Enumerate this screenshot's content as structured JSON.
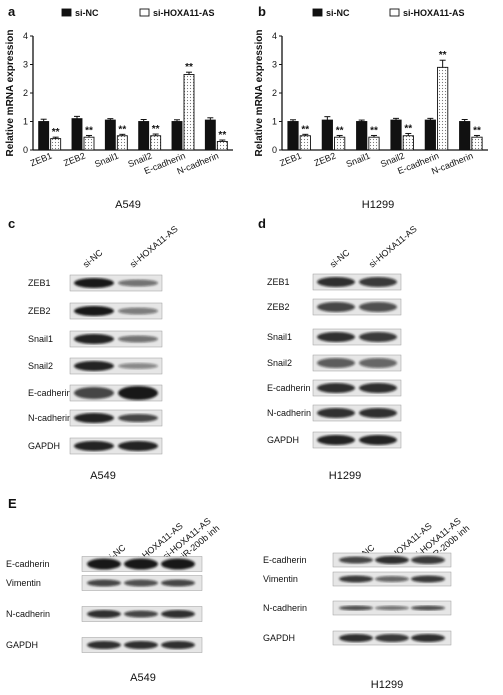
{
  "panels": {
    "a": {
      "letter": "a",
      "cell_line": "A549"
    },
    "b": {
      "letter": "b",
      "cell_line": "H1299"
    },
    "c": {
      "letter": "c",
      "cell_line": "A549",
      "columns": [
        "si-NC",
        "si-HOXA11-AS"
      ],
      "rows": [
        "ZEB1",
        "ZEB2",
        "Snail1",
        "Snail2",
        "E-cadherin",
        "N-cadherin",
        "GAPDH"
      ]
    },
    "d": {
      "letter": "d",
      "cell_line": "H1299",
      "columns": [
        "si-NC",
        "si-HOXA11-AS"
      ],
      "rows": [
        "ZEB1",
        "ZEB2",
        "Snail1",
        "Snail2",
        "E-cadherin",
        "N-cadherin",
        "GAPDH"
      ]
    },
    "e": {
      "letter": "E",
      "left": {
        "cell_line": "A549",
        "columns": [
          "si-NC",
          "si-HOXA11-AS",
          "si-HOXA11-AS",
          "+miR-200b inh"
        ],
        "rows": [
          "E-cadherin",
          "Vimentin",
          "N-cadherin",
          "GAPDH"
        ]
      },
      "right": {
        "cell_line": "H1299",
        "columns": [
          "si-NC",
          "si-HOXA11-AS",
          "si-HOXA11-AS",
          "+miR-200b inh"
        ],
        "rows": [
          "E-cadherin",
          "Vimentin",
          "N-cadherin",
          "GAPDH"
        ]
      }
    }
  },
  "chart_data": [
    {
      "type": "bar",
      "panel": "a",
      "categories": [
        "ZEB1",
        "ZEB2",
        "Snail1",
        "Snail2",
        "E-cadherin",
        "N-cadherin"
      ],
      "series": [
        {
          "name": "si-NC",
          "values": [
            1.0,
            1.1,
            1.05,
            1.0,
            1.0,
            1.05
          ],
          "errors": [
            0.08,
            0.08,
            0.05,
            0.07,
            0.06,
            0.08
          ]
        },
        {
          "name": "si-HOXA11-AS",
          "values": [
            0.4,
            0.45,
            0.5,
            0.5,
            2.65,
            0.3
          ],
          "errors": [
            0.05,
            0.06,
            0.05,
            0.06,
            0.08,
            0.05
          ]
        }
      ],
      "significance": [
        "**",
        "**",
        "**",
        "**",
        "**",
        "**"
      ],
      "ylabel": "Relative mRNA expression",
      "ylim": [
        0,
        4
      ],
      "yticks": [
        0,
        1,
        2,
        3,
        4
      ],
      "legend": "top"
    },
    {
      "type": "bar",
      "panel": "b",
      "categories": [
        "ZEB1",
        "ZEB2",
        "Snail1",
        "Snail2",
        "E-cadherin",
        "N-cadherin"
      ],
      "series": [
        {
          "name": "si-NC",
          "values": [
            1.0,
            1.05,
            1.0,
            1.05,
            1.05,
            1.0
          ],
          "errors": [
            0.06,
            0.12,
            0.05,
            0.06,
            0.06,
            0.07
          ]
        },
        {
          "name": "si-HOXA11-AS",
          "values": [
            0.5,
            0.45,
            0.45,
            0.5,
            2.9,
            0.45
          ],
          "errors": [
            0.05,
            0.06,
            0.06,
            0.08,
            0.25,
            0.06
          ]
        }
      ],
      "significance": [
        "**",
        "**",
        "**",
        "**",
        "**",
        "**"
      ],
      "ylabel": "Relative mRNA expression",
      "ylim": [
        0,
        4
      ],
      "yticks": [
        0,
        1,
        2,
        3,
        4
      ],
      "legend": "top"
    }
  ]
}
